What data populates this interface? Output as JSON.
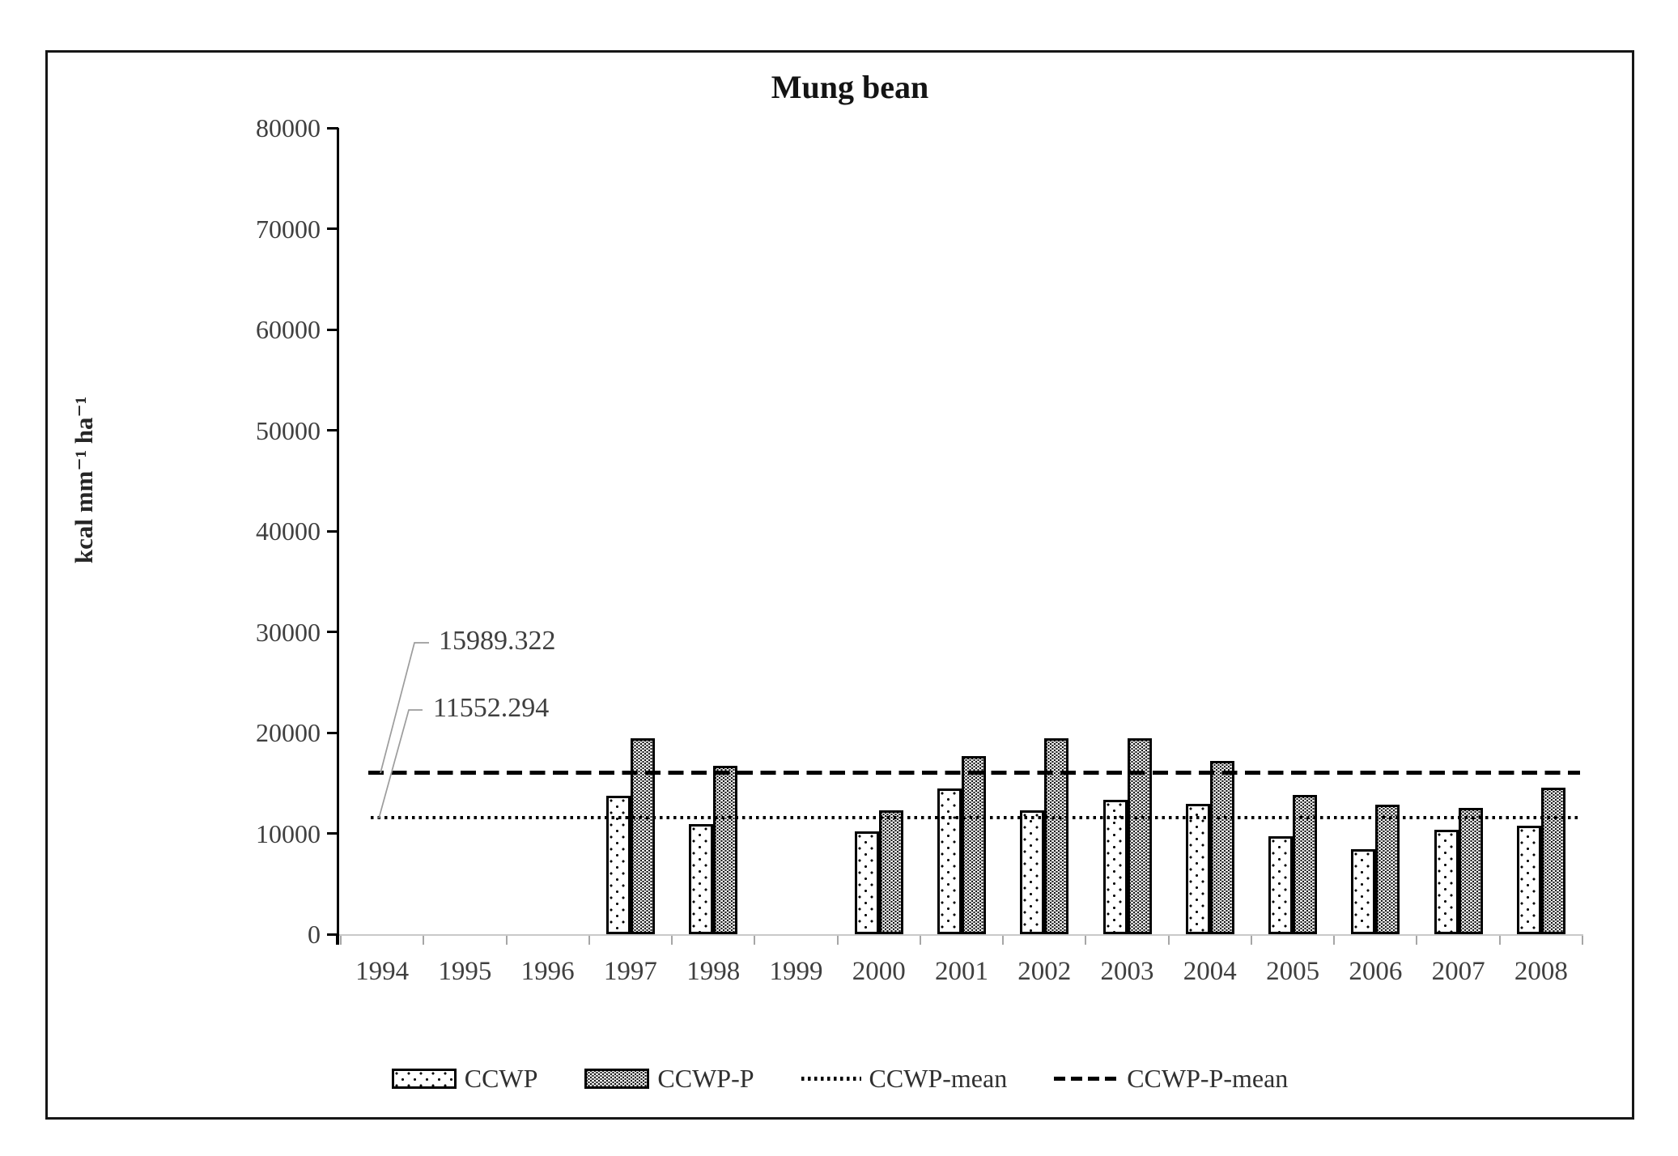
{
  "title": "Mung bean",
  "y_axis": {
    "label": "kcal mm⁻¹ ha⁻¹",
    "ticks": [
      "80000",
      "70000",
      "60000",
      "50000",
      "40000",
      "30000",
      "20000",
      "10000",
      "0"
    ]
  },
  "x_axis": {
    "ticks": [
      "1994",
      "1995",
      "1996",
      "1997",
      "1998",
      "1999",
      "2000",
      "2001",
      "2002",
      "2003",
      "2004",
      "2005",
      "2006",
      "2007",
      "2008"
    ]
  },
  "annotations": {
    "ccwp_p_mean": "15989.322",
    "ccwp_mean": "11552.294"
  },
  "legend": {
    "items": [
      {
        "label": "CCWP",
        "swatch": "sparse-dot-pattern-box"
      },
      {
        "label": "CCWP-P",
        "swatch": "dense-dot-pattern-box"
      },
      {
        "label": "CCWP-mean",
        "swatch": "dotted-line"
      },
      {
        "label": "CCWP-P-mean",
        "swatch": "dashed-line"
      }
    ]
  },
  "chart_data": {
    "type": "bar",
    "title": "Mung bean",
    "xlabel": "",
    "ylabel": "kcal mm⁻¹ ha⁻¹",
    "ylim": [
      0,
      80000
    ],
    "ytick_interval": 10000,
    "grid": false,
    "legend_position": "bottom",
    "categories": [
      "1994",
      "1995",
      "1996",
      "1997",
      "1998",
      "1999",
      "2000",
      "2001",
      "2002",
      "2003",
      "2004",
      "2005",
      "2006",
      "2007",
      "2008"
    ],
    "series": [
      {
        "name": "CCWP",
        "pattern": "sparse-dots",
        "values": [
          null,
          null,
          null,
          13750,
          10900,
          null,
          10200,
          14450,
          12300,
          13350,
          12900,
          9700,
          8400,
          10350,
          10750
        ]
      },
      {
        "name": "CCWP-P",
        "pattern": "dense-dots",
        "values": [
          null,
          null,
          null,
          19450,
          16700,
          null,
          12250,
          17650,
          19450,
          19450,
          17150,
          13850,
          12850,
          12550,
          14550
        ]
      }
    ],
    "mean_lines": [
      {
        "name": "CCWP-mean",
        "value": 11552.294,
        "style": "dotted"
      },
      {
        "name": "CCWP-P-mean",
        "value": 15989.322,
        "style": "dashed"
      }
    ]
  }
}
